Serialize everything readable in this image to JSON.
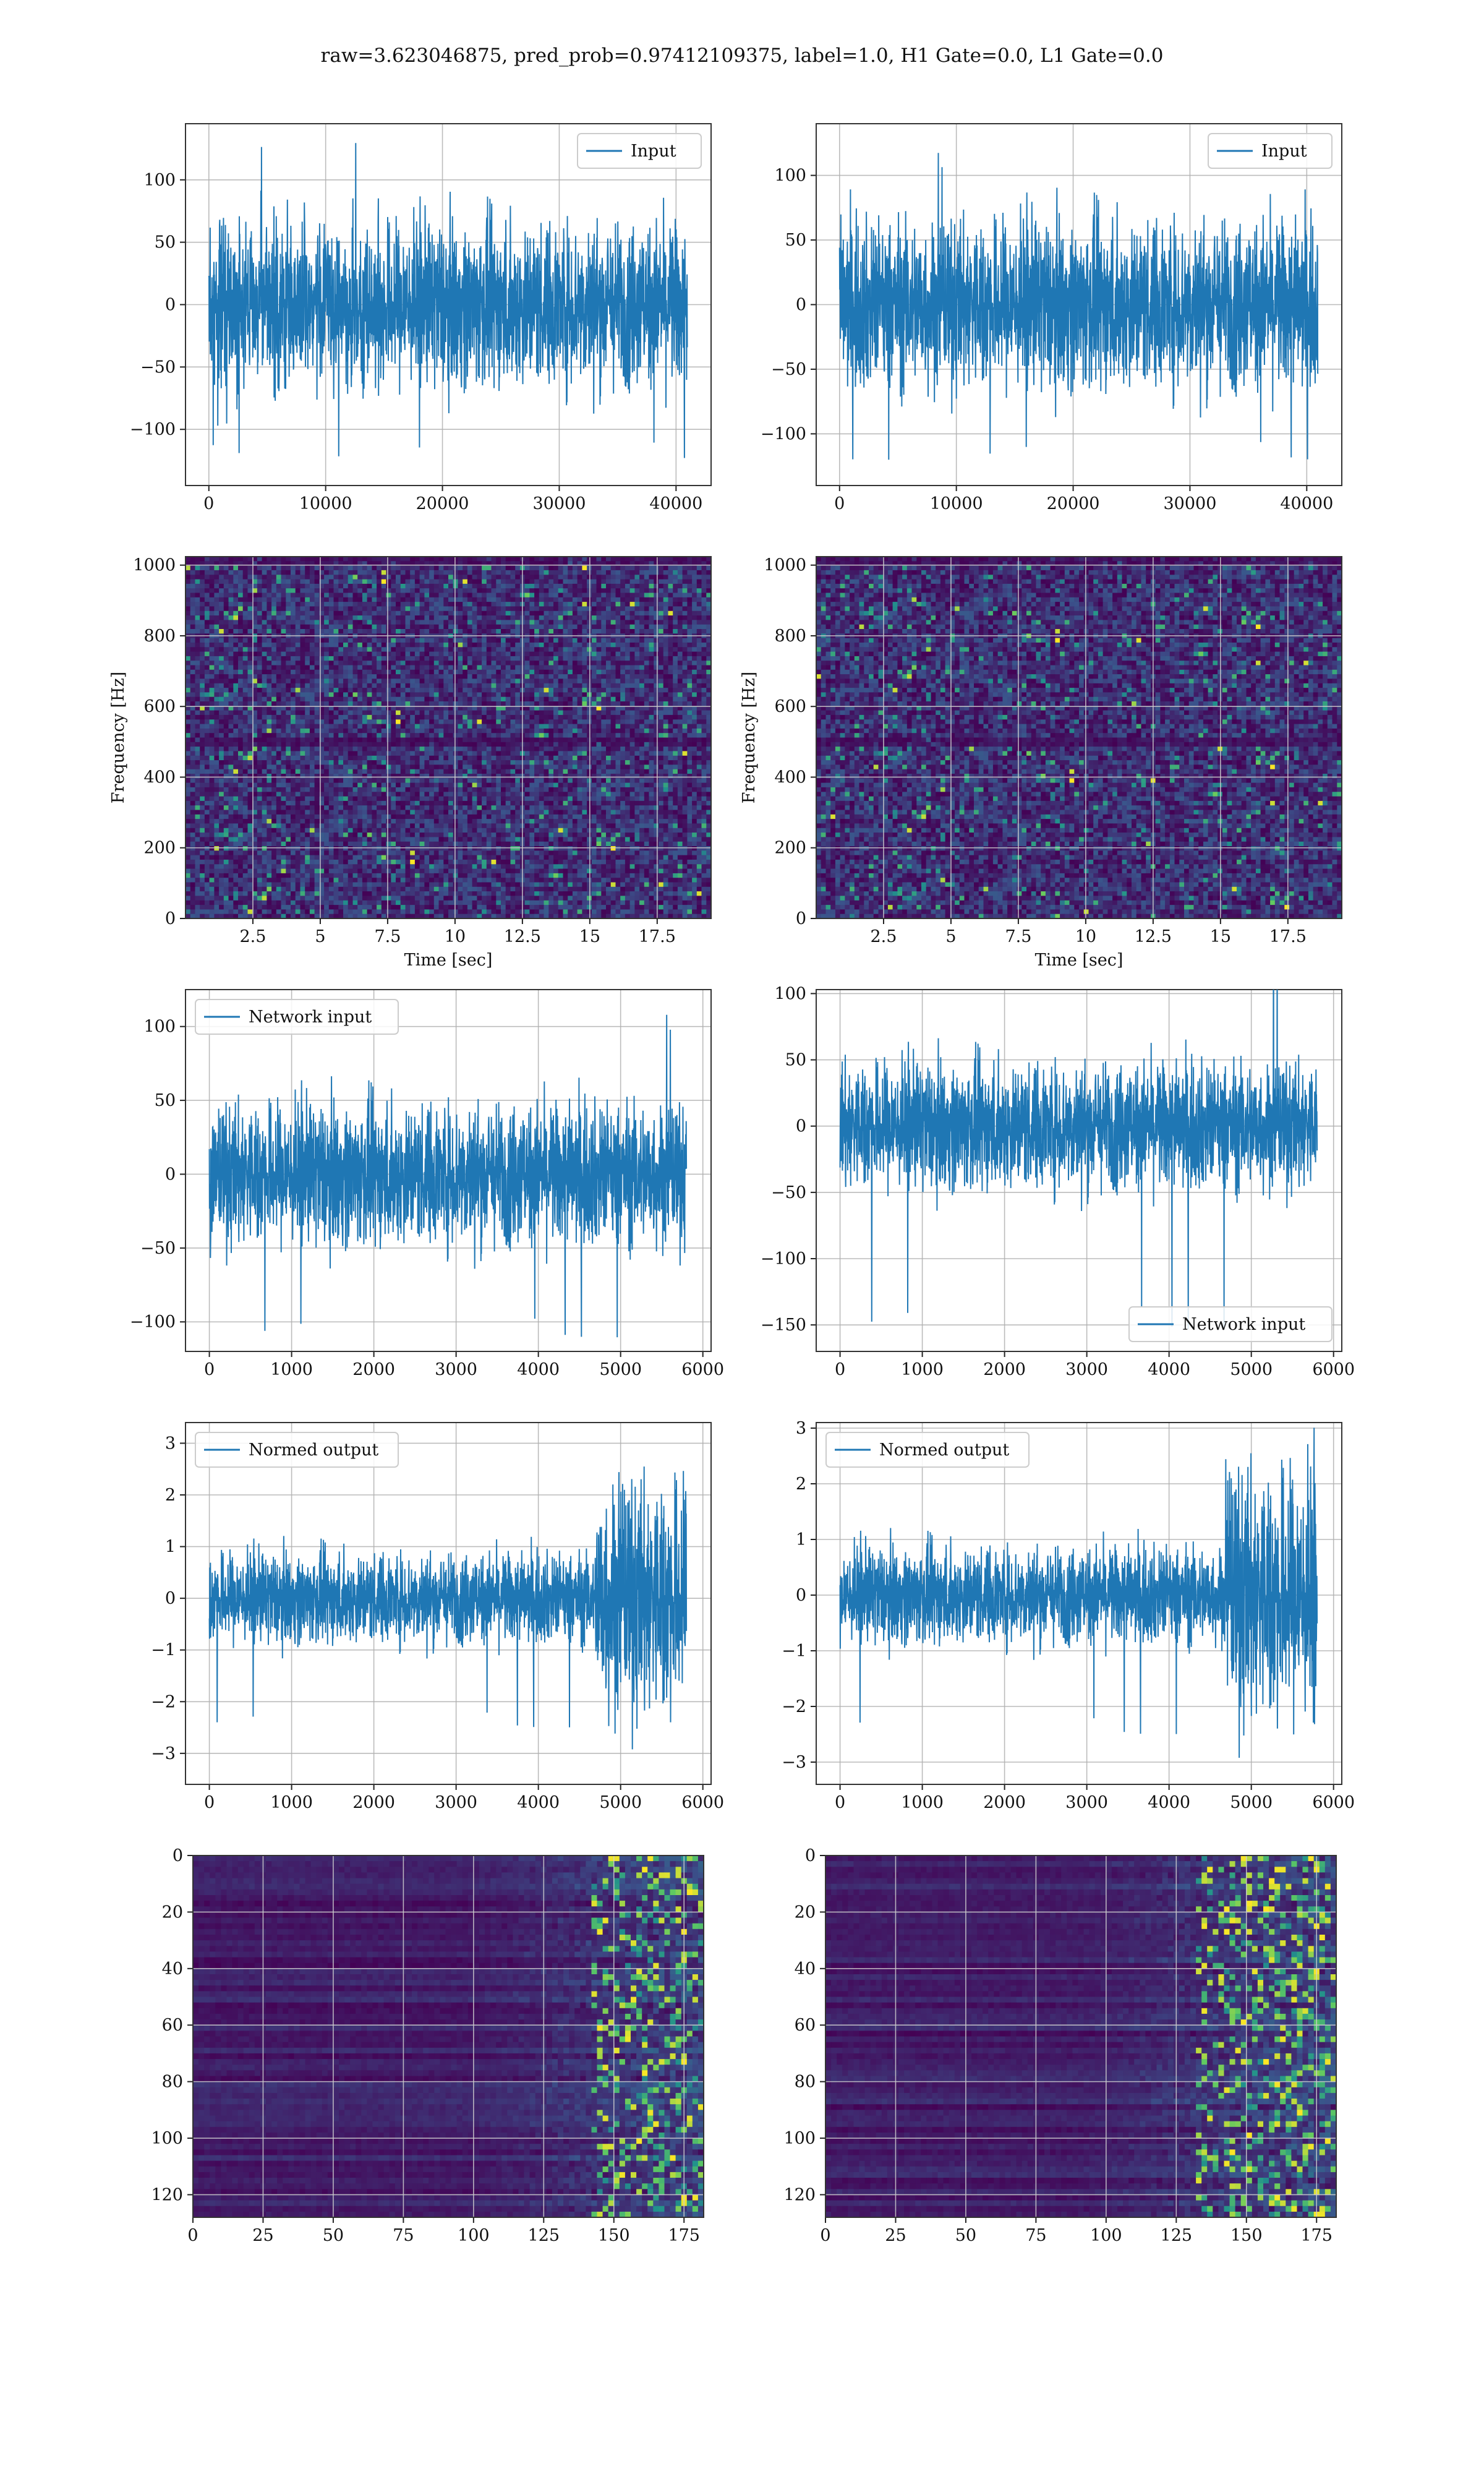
{
  "figure": {
    "suptitle": "raw=3.623046875, pred_prob=0.97412109375, label=1.0, H1 Gate=0.0, L1 Gate=0.0",
    "colors": {
      "line": "#1f77b4",
      "grid": "#b0b0b0",
      "frame": "#333333",
      "viridis_low": "#440154",
      "viridis_mid": "#21918c",
      "viridis_high": "#fde725"
    }
  },
  "chart_data": [
    {
      "id": "input-left",
      "type": "line",
      "legend": "Input",
      "legend_loc": "upper right",
      "n_points": 40960,
      "xlim": [
        -2000,
        43000
      ],
      "ylim": [
        -145,
        145
      ],
      "xticks": [
        0,
        10000,
        20000,
        30000,
        40000
      ],
      "yticks": [
        -100,
        -50,
        0,
        50,
        100
      ],
      "series": [
        {
          "name": "Input",
          "x_range": [
            0,
            40960
          ],
          "envelope_abs": 75,
          "peak_abs": 130
        }
      ]
    },
    {
      "id": "input-right",
      "type": "line",
      "legend": "Input",
      "legend_loc": "upper right",
      "n_points": 40960,
      "xlim": [
        -2000,
        43000
      ],
      "ylim": [
        -140,
        140
      ],
      "xticks": [
        0,
        10000,
        20000,
        30000,
        40000
      ],
      "yticks": [
        -100,
        -50,
        0,
        50,
        100
      ],
      "series": [
        {
          "name": "Input",
          "x_range": [
            0,
            40960
          ],
          "envelope_abs": 75,
          "peak_abs": 125
        }
      ]
    },
    {
      "id": "spectrogram-left",
      "type": "heatmap",
      "colormap": "viridis",
      "xlim": [
        0,
        19.5
      ],
      "ylim": [
        0,
        1024
      ],
      "xticks": [
        2.5,
        5.0,
        7.5,
        10.0,
        12.5,
        15.0,
        17.5
      ],
      "yticks": [
        0,
        200,
        400,
        600,
        800,
        1000
      ],
      "xlabel": "Time [sec]",
      "ylabel": "Frequency [Hz]",
      "dark_band_hz": [
        485,
        510
      ]
    },
    {
      "id": "spectrogram-right",
      "type": "heatmap",
      "colormap": "viridis",
      "xlim": [
        0,
        19.5
      ],
      "ylim": [
        0,
        1024
      ],
      "xticks": [
        2.5,
        5.0,
        7.5,
        10.0,
        12.5,
        15.0,
        17.5
      ],
      "yticks": [
        0,
        200,
        400,
        600,
        800,
        1000
      ],
      "xlabel": "Time [sec]",
      "ylabel": "Frequency [Hz]",
      "dark_band_hz": [
        485,
        510
      ]
    },
    {
      "id": "network-input-left",
      "type": "line",
      "legend": "Network input",
      "legend_loc": "upper left",
      "n_points": 5800,
      "xlim": [
        -290,
        6100
      ],
      "ylim": [
        -120,
        125
      ],
      "xticks": [
        0,
        1000,
        2000,
        3000,
        4000,
        5000,
        6000
      ],
      "yticks": [
        -100,
        -50,
        0,
        50,
        100
      ],
      "series": [
        {
          "name": "Network input",
          "x_range": [
            0,
            5800
          ],
          "envelope_abs": 55,
          "peak_abs": 115
        }
      ]
    },
    {
      "id": "network-input-right",
      "type": "line",
      "legend": "Network input",
      "legend_loc": "lower right",
      "n_points": 5800,
      "xlim": [
        -290,
        6100
      ],
      "ylim": [
        -170,
        103
      ],
      "xticks": [
        0,
        1000,
        2000,
        3000,
        4000,
        5000,
        6000
      ],
      "yticks": [
        -150,
        -100,
        -50,
        0,
        50,
        100
      ],
      "series": [
        {
          "name": "Network input",
          "x_range": [
            0,
            5800
          ],
          "envelope_abs": 55,
          "peak_abs": 160
        }
      ]
    },
    {
      "id": "normed-output-left",
      "type": "line",
      "legend": "Normed output",
      "legend_loc": "upper left",
      "n_points": 5800,
      "xlim": [
        -290,
        6100
      ],
      "ylim": [
        -3.6,
        3.4
      ],
      "xticks": [
        0,
        1000,
        2000,
        3000,
        4000,
        5000,
        6000
      ],
      "yticks": [
        -3,
        -2,
        -1,
        0,
        1,
        2,
        3
      ],
      "series": [
        {
          "name": "Normed output",
          "x_range": [
            0,
            5800
          ],
          "envelope_abs": 1.0,
          "burst_x": [
            4700,
            5800
          ],
          "burst_abs": 2.6
        }
      ]
    },
    {
      "id": "normed-output-right",
      "type": "line",
      "legend": "Normed output",
      "legend_loc": "upper left",
      "n_points": 5800,
      "xlim": [
        -290,
        6100
      ],
      "ylim": [
        -3.4,
        3.1
      ],
      "xticks": [
        0,
        1000,
        2000,
        3000,
        4000,
        5000,
        6000
      ],
      "yticks": [
        -3,
        -2,
        -1,
        0,
        1,
        2,
        3
      ],
      "series": [
        {
          "name": "Normed output",
          "x_range": [
            0,
            5800
          ],
          "envelope_abs": 1.0,
          "burst_x": [
            4700,
            5800
          ],
          "burst_abs": 2.6
        }
      ]
    },
    {
      "id": "feature-map-left",
      "type": "heatmap",
      "colormap": "viridis",
      "shape": [
        128,
        182
      ],
      "xlim": [
        0,
        182
      ],
      "ylim": [
        128,
        0
      ],
      "xticks": [
        0,
        25,
        50,
        75,
        100,
        125,
        150,
        175
      ],
      "yticks": [
        0,
        20,
        40,
        60,
        80,
        100,
        120
      ],
      "bright_from_col": 140
    },
    {
      "id": "feature-map-right",
      "type": "heatmap",
      "colormap": "viridis",
      "shape": [
        128,
        182
      ],
      "xlim": [
        0,
        182
      ],
      "ylim": [
        128,
        0
      ],
      "xticks": [
        0,
        25,
        50,
        75,
        100,
        125,
        150,
        175
      ],
      "yticks": [
        0,
        20,
        40,
        60,
        80,
        100,
        120
      ],
      "bright_from_col": 130
    }
  ]
}
